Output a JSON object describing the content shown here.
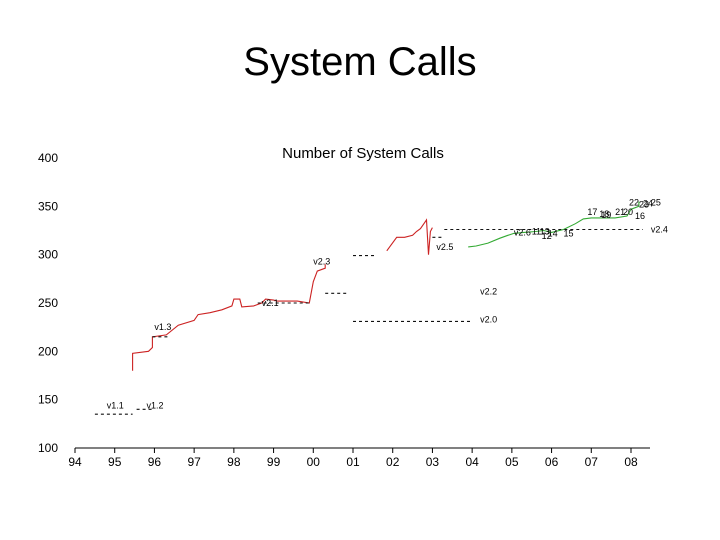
{
  "slide": {
    "title": "System Calls"
  },
  "chart_data": {
    "type": "line",
    "title": "Number of System Calls",
    "xlabel": "",
    "ylabel": "",
    "xlim": [
      1994,
      2008.3
    ],
    "ylim": [
      100,
      400
    ],
    "x_tick_labels": [
      {
        "x": 1994,
        "label": "94"
      },
      {
        "x": 1995,
        "label": "95"
      },
      {
        "x": 1996,
        "label": "96"
      },
      {
        "x": 1997,
        "label": "97"
      },
      {
        "x": 1998,
        "label": "98"
      },
      {
        "x": 1999,
        "label": "99"
      },
      {
        "x": 2000,
        "label": "00"
      },
      {
        "x": 2001,
        "label": "01"
      },
      {
        "x": 2002,
        "label": "02"
      },
      {
        "x": 2003,
        "label": "03"
      },
      {
        "x": 2004,
        "label": "04"
      },
      {
        "x": 2005,
        "label": "05"
      },
      {
        "x": 2006,
        "label": "06"
      },
      {
        "x": 2007,
        "label": "07"
      },
      {
        "x": 2008,
        "label": "08"
      }
    ],
    "y_ticks": [
      100,
      150,
      200,
      250,
      300,
      350,
      400
    ],
    "grid": false,
    "legend": "none",
    "colors": {
      "development": "#cc2222",
      "stable": "#111111",
      "v26": "#33aa33"
    },
    "series": [
      {
        "style": "development",
        "points": [
          [
            1995.45,
            180
          ],
          [
            1995.45,
            198
          ],
          [
            1995.85,
            200
          ],
          [
            1995.95,
            204
          ],
          [
            1995.95,
            215
          ],
          [
            1996.3,
            217
          ],
          [
            1996.6,
            227
          ],
          [
            1997.0,
            232
          ],
          [
            1997.1,
            238
          ],
          [
            1997.4,
            240
          ],
          [
            1997.7,
            243
          ],
          [
            1997.95,
            247
          ],
          [
            1998.0,
            254
          ],
          [
            1998.15,
            254
          ],
          [
            1998.2,
            246
          ],
          [
            1998.5,
            247
          ],
          [
            1998.7,
            250
          ],
          [
            1998.8,
            254
          ],
          [
            1999.0,
            253
          ],
          [
            1999.1,
            252
          ],
          [
            1999.6,
            252
          ],
          [
            1999.9,
            250
          ],
          [
            2000.0,
            272
          ],
          [
            2000.1,
            283
          ],
          [
            2000.3,
            286
          ],
          [
            2000.3,
            290
          ]
        ]
      },
      {
        "style": "development",
        "points": [
          [
            2001.85,
            304
          ],
          [
            2002.1,
            318
          ],
          [
            2002.3,
            318
          ],
          [
            2002.5,
            320
          ],
          [
            2002.6,
            324
          ],
          [
            2002.7,
            327
          ],
          [
            2002.8,
            333
          ],
          [
            2002.85,
            336
          ],
          [
            2002.9,
            300
          ],
          [
            2002.95,
            324
          ],
          [
            2003.0,
            328
          ]
        ]
      },
      {
        "style": "v26",
        "points": [
          [
            2003.9,
            308
          ],
          [
            2004.1,
            309
          ],
          [
            2004.4,
            312
          ],
          [
            2004.7,
            317
          ],
          [
            2004.9,
            320
          ],
          [
            2005.05,
            322
          ],
          [
            2005.3,
            323
          ],
          [
            2005.6,
            324
          ],
          [
            2005.8,
            325
          ],
          [
            2006.0,
            323
          ],
          [
            2006.3,
            326
          ],
          [
            2006.6,
            332
          ],
          [
            2006.8,
            337
          ],
          [
            2007.0,
            338
          ],
          [
            2007.3,
            338
          ],
          [
            2007.6,
            338
          ],
          [
            2007.9,
            340
          ],
          [
            2008.0,
            347
          ],
          [
            2008.2,
            350
          ],
          [
            2008.2,
            355
          ]
        ]
      },
      {
        "style": "stable",
        "dashed": true,
        "points": [
          [
            1994.5,
            135
          ],
          [
            1995.45,
            135
          ]
        ]
      },
      {
        "style": "stable",
        "dashed": true,
        "points": [
          [
            1995.55,
            140
          ],
          [
            1996.0,
            140
          ]
        ]
      },
      {
        "style": "stable",
        "dashed": true,
        "points": [
          [
            1995.95,
            215
          ],
          [
            1996.35,
            215
          ]
        ]
      },
      {
        "style": "stable",
        "dashed": true,
        "points": [
          [
            1998.6,
            250
          ],
          [
            1999.95,
            250
          ]
        ]
      },
      {
        "style": "stable",
        "dashed": true,
        "points": [
          [
            2000.3,
            260
          ],
          [
            2000.9,
            260
          ]
        ]
      },
      {
        "style": "stable",
        "dashed": true,
        "points": [
          [
            2001.0,
            231
          ],
          [
            2004.0,
            231
          ]
        ]
      },
      {
        "style": "stable",
        "dashed": true,
        "points": [
          [
            2001.0,
            299
          ],
          [
            2001.6,
            299
          ]
        ]
      },
      {
        "style": "stable",
        "dashed": true,
        "points": [
          [
            2003.0,
            318
          ],
          [
            2003.3,
            318
          ]
        ]
      },
      {
        "style": "stable",
        "dashed": true,
        "points": [
          [
            2003.3,
            326
          ],
          [
            2008.3,
            326
          ]
        ]
      }
    ],
    "annotations": [
      {
        "x": 1994.8,
        "y": 141,
        "text": "v1.1"
      },
      {
        "x": 1995.8,
        "y": 141,
        "text": "v1.2"
      },
      {
        "x": 1996.0,
        "y": 222,
        "text": "v1.3"
      },
      {
        "x": 1998.7,
        "y": 247,
        "text": "v2.1"
      },
      {
        "x": 2000.0,
        "y": 290,
        "text": "v2.3"
      },
      {
        "x": 2003.1,
        "y": 305,
        "text": "v2.5"
      },
      {
        "x": 2004.2,
        "y": 259,
        "text": "v2.2"
      },
      {
        "x": 2004.2,
        "y": 230,
        "text": "v2.0"
      },
      {
        "x": 2005.05,
        "y": 320,
        "text": "v2.6"
      },
      {
        "x": 2008.5,
        "y": 323,
        "text": "v2.4"
      },
      {
        "x": 2005.5,
        "y": 321,
        "text": "11"
      },
      {
        "x": 2005.7,
        "y": 321,
        "text": "13"
      },
      {
        "x": 2005.9,
        "y": 319,
        "text": "14"
      },
      {
        "x": 2005.75,
        "y": 316,
        "text": "12"
      },
      {
        "x": 2006.3,
        "y": 319,
        "text": "15"
      },
      {
        "x": 2006.9,
        "y": 341,
        "text": "17"
      },
      {
        "x": 2007.2,
        "y": 339,
        "text": "18"
      },
      {
        "x": 2007.25,
        "y": 338,
        "text": "19"
      },
      {
        "x": 2007.6,
        "y": 341,
        "text": "21"
      },
      {
        "x": 2007.8,
        "y": 341,
        "text": "20"
      },
      {
        "x": 2008.1,
        "y": 337,
        "text": "16"
      },
      {
        "x": 2007.95,
        "y": 351,
        "text": "22"
      },
      {
        "x": 2008.2,
        "y": 349,
        "text": "23"
      },
      {
        "x": 2008.3,
        "y": 350,
        "text": "24"
      },
      {
        "x": 2008.5,
        "y": 351,
        "text": "25"
      }
    ]
  }
}
